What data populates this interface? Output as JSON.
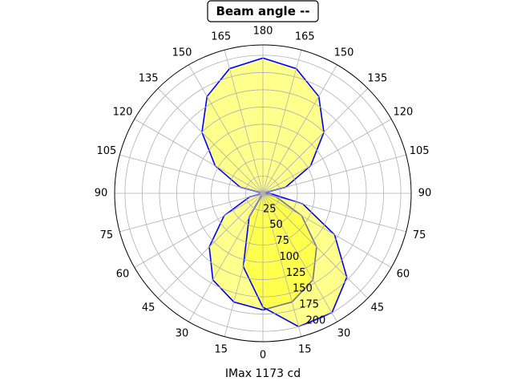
{
  "chart_data": {
    "type": "polar",
    "title": "Beam angle --",
    "xlabel": "IMax 1173 cd",
    "x": [
      0,
      15,
      30,
      45,
      60,
      75,
      90,
      105,
      120,
      135,
      150,
      165,
      180,
      195,
      210,
      225,
      240,
      255,
      270,
      285,
      300,
      315,
      330,
      345
    ],
    "series": [
      {
        "color": "#0000ff",
        "fill": "#ffff00",
        "values": [
          169,
          163,
          145,
          110,
          65,
          20,
          0,
          34,
          80,
          125,
          162,
          187,
          196,
          187,
          162,
          125,
          80,
          34,
          0,
          20,
          65,
          110,
          145,
          163
        ]
      },
      {
        "color": "#0000ff",
        "fill": "#ffff00",
        "values": [
          165,
          200,
          200,
          172,
          120,
          60,
          10,
          0,
          null,
          null,
          null,
          null,
          null,
          null,
          null,
          null,
          null,
          null,
          null,
          null,
          null,
          0,
          40,
          110
        ]
      }
    ],
    "xticks": [
      0,
      15,
      30,
      45,
      60,
      75,
      90,
      105,
      120,
      135,
      150,
      165,
      180,
      {
        "value": 195,
        "label": "165"
      },
      {
        "value": 210,
        "label": "150"
      },
      {
        "value": 225,
        "label": "135"
      },
      {
        "value": 240,
        "label": "120"
      },
      {
        "value": 255,
        "label": "105"
      },
      {
        "value": 270,
        "label": "90"
      },
      {
        "value": 285,
        "label": "75"
      },
      {
        "value": 300,
        "label": "60"
      },
      {
        "value": 315,
        "label": "45"
      },
      {
        "value": 330,
        "label": "30"
      },
      {
        "value": 345,
        "label": "15"
      }
    ],
    "ylim": [
      0,
      215
    ],
    "yticks": [
      25,
      50,
      75,
      100,
      125,
      150,
      175,
      200
    ],
    "grid": true
  }
}
